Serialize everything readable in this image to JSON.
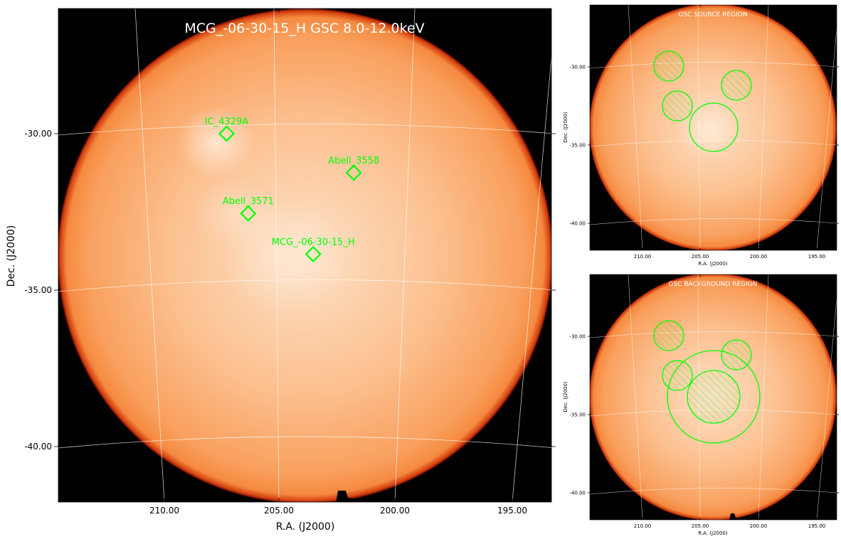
{
  "chart_data": [
    {
      "type": "sky-image",
      "title": "MCG_-06-30-15_H GSC 8.0-12.0keV",
      "xlabel": "R.A. (J2000)",
      "ylabel": "Dec. (J2000)",
      "xlim": [
        214.6,
        193.2
      ],
      "ylim": [
        -41.8,
        -26.0
      ],
      "x_ticks": [
        "210.00",
        "205.00",
        "200.00",
        "195.00"
      ],
      "x_tick_values": [
        210,
        205,
        200,
        195
      ],
      "y_ticks": [
        "-30.00",
        "-35.00",
        "-40.00"
      ],
      "y_tick_values": [
        -30,
        -35,
        -40
      ],
      "grid": true,
      "colormap": "hot",
      "sources": [
        {
          "name": "IC_4329A",
          "ra": 207.3,
          "dec": -30.0
        },
        {
          "name": "Abell_3558",
          "ra": 201.9,
          "dec": -31.25
        },
        {
          "name": "Abell_3571",
          "ra": 206.6,
          "dec": -32.55
        },
        {
          "name": "MCG_-06-30-15_H",
          "ra": 203.9,
          "dec": -33.85
        }
      ]
    },
    {
      "type": "sky-image",
      "title": "GSC SOURCE REGION",
      "xlabel": "R.A. (J2000)",
      "ylabel": "Dec. (J2000)",
      "x_ticks": [
        "210.00",
        "205.00",
        "200.00",
        "195.00"
      ],
      "x_tick_values": [
        210,
        205,
        200,
        195
      ],
      "y_ticks": [
        "-30.00",
        "-35.00",
        "-40.00"
      ],
      "y_tick_values": [
        -30,
        -35,
        -40
      ],
      "regions": [
        {
          "kind": "excluded-circle",
          "center": "IC_4329A"
        },
        {
          "kind": "excluded-circle",
          "center": "Abell_3558"
        },
        {
          "kind": "excluded-circle",
          "center": "Abell_3571"
        },
        {
          "kind": "source-circle",
          "center": "MCG_-06-30-15_H"
        }
      ]
    },
    {
      "type": "sky-image",
      "title": "GSC BACKGROUND REGION",
      "xlabel": "R.A. (J2000)",
      "ylabel": "Dec. (J2000)",
      "x_ticks": [
        "210.00",
        "205.00",
        "200.00",
        "195.00"
      ],
      "x_tick_values": [
        210,
        205,
        200,
        195
      ],
      "y_ticks": [
        "-30.00",
        "-35.00",
        "-40.00"
      ],
      "y_tick_values": [
        -30,
        -35,
        -40
      ],
      "regions": [
        {
          "kind": "excluded-circle",
          "center": "IC_4329A"
        },
        {
          "kind": "excluded-circle",
          "center": "Abell_3558"
        },
        {
          "kind": "excluded-circle",
          "center": "Abell_3571"
        },
        {
          "kind": "excluded-circle",
          "center": "MCG_-06-30-15_H"
        },
        {
          "kind": "background-annulus",
          "center": "MCG_-06-30-15_H"
        }
      ]
    }
  ],
  "colors": {
    "disk_center": "#fde2c8",
    "disk_mid": "#fbb27a",
    "disk_edge": "#f58a40",
    "rim": "#c0280a",
    "background": "#000000",
    "region": "#00ff00",
    "grid": "#ffffff"
  }
}
